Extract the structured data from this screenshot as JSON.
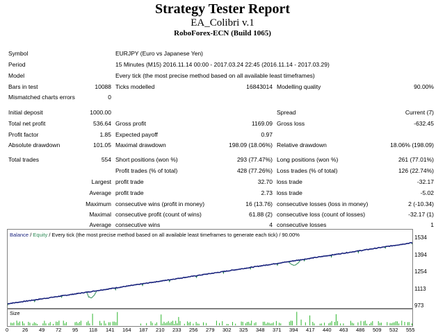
{
  "header": {
    "title": "Strategy Tester Report",
    "ea": "EA_Colibri v.1",
    "broker": "RoboForex-ECN (Build 1065)"
  },
  "info": {
    "symbol_label": "Symbol",
    "symbol_value": "EURJPY (Euro vs Japanese Yen)",
    "period_label": "Period",
    "period_value": "15 Minutes (M15) 2016.11.14 00:00 - 2017.03.24 22:45 (2016.11.14 - 2017.03.29)",
    "model_label": "Model",
    "model_value": "Every tick (the most precise method based on all available least timeframes)",
    "bars_label": "Bars in test",
    "bars_value": "10088",
    "ticks_label": "Ticks modelled",
    "ticks_value": "16843014",
    "quality_label": "Modelling quality",
    "quality_value": "90.00%",
    "mismatch_label": "Mismatched charts errors",
    "mismatch_value": "0"
  },
  "stats": {
    "initial_deposit_label": "Initial deposit",
    "initial_deposit": "1000.00",
    "spread_label": "Spread",
    "spread": "Current (7)",
    "net_profit_label": "Total net profit",
    "net_profit": "536.64",
    "gross_profit_label": "Gross profit",
    "gross_profit": "1169.09",
    "gross_loss_label": "Gross loss",
    "gross_loss": "-632.45",
    "profit_factor_label": "Profit factor",
    "profit_factor": "1.85",
    "expected_payoff_label": "Expected payoff",
    "expected_payoff": "0.97",
    "abs_dd_label": "Absolute drawdown",
    "abs_dd": "101.05",
    "max_dd_label": "Maximal drawdown",
    "max_dd": "198.09 (18.06%)",
    "rel_dd_label": "Relative drawdown",
    "rel_dd": "18.06% (198.09)",
    "total_trades_label": "Total trades",
    "total_trades": "554",
    "short_label": "Short positions (won %)",
    "short": "293 (77.47%)",
    "long_label": "Long positions (won %)",
    "long": "261 (77.01%)",
    "profit_trades_label": "Profit trades (% of total)",
    "profit_trades": "428 (77.26%)",
    "loss_trades_label": "Loss trades (% of total)",
    "loss_trades": "126 (22.74%)",
    "largest_label": "Largest",
    "profit_trade_label": "profit trade",
    "largest_profit": "32.70",
    "loss_trade_label": "loss trade",
    "largest_loss": "-32.17",
    "average_label": "Average",
    "avg_profit": "2.73",
    "avg_loss": "-5.02",
    "maximum_label": "Maximum",
    "cons_wins_money_label": "consecutive wins (profit in money)",
    "cons_wins_money": "16 (13.76)",
    "cons_losses_money_label": "consecutive losses (loss in money)",
    "cons_losses_money": "2 (-10.34)",
    "maximal_label": "Maximal",
    "cons_profit_count_label": "consecutive profit (count of wins)",
    "cons_profit_count": "61.88 (2)",
    "cons_loss_count_label": "consecutive loss (count of losses)",
    "cons_loss_count": "-32.17 (1)",
    "avg_cons_wins_label": "consecutive wins",
    "avg_cons_wins": "4",
    "avg_cons_losses_label": "consecutive losses",
    "avg_cons_losses": "1"
  },
  "chart": {
    "legend_balance": "Balance",
    "legend_sep1": "/",
    "legend_equity": "Equity",
    "legend_sep2": "/ Every tick (the most precise method based on all available least timeframes to generate each tick)",
    "legend_sep3": "/ 90.00%",
    "y_ticks": [
      "1534",
      "1394",
      "1254",
      "1113",
      "973"
    ],
    "y_values": [
      1534,
      1394,
      1254,
      1113,
      973
    ],
    "size_label": "Size",
    "x_ticks": [
      "0",
      "26",
      "49",
      "72",
      "95",
      "118",
      "141",
      "164",
      "187",
      "210",
      "233",
      "256",
      "279",
      "302",
      "325",
      "348",
      "371",
      "394",
      "417",
      "440",
      "463",
      "486",
      "509",
      "532",
      "555"
    ],
    "balance_color": "#1a237e",
    "equity_color": "#2e8b57",
    "size_color": "#2db52d"
  }
}
